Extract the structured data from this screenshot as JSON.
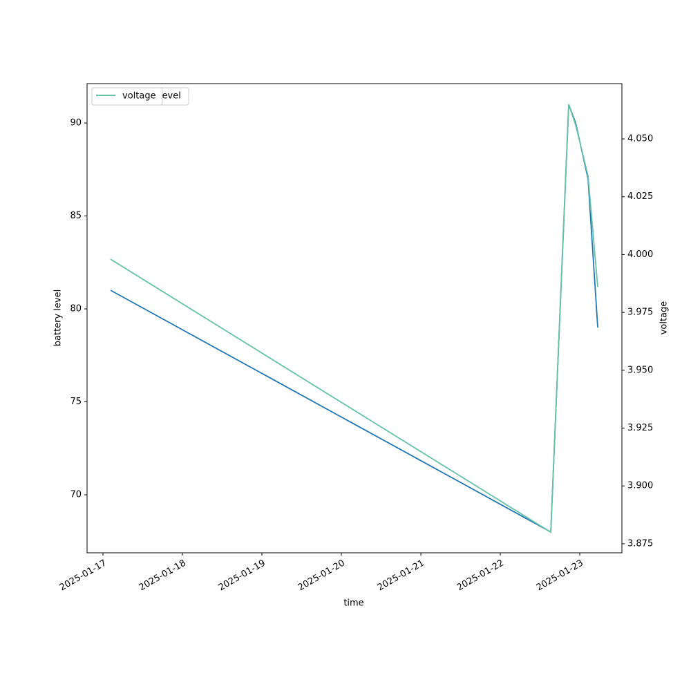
{
  "chart_data": {
    "type": "line",
    "x_label": "time",
    "y_label": "battery level",
    "y2_label": "voltage",
    "x": [
      20105.096,
      20110.635,
      20110.861,
      20110.948,
      20111.104,
      20111.226
    ],
    "xlim": [
      20104.8,
      20111.53
    ],
    "xticks": [
      {
        "value": 20105,
        "label": "2025-01-17"
      },
      {
        "value": 20106,
        "label": "2025-01-18"
      },
      {
        "value": 20107,
        "label": "2025-01-19"
      },
      {
        "value": 20108,
        "label": "2025-01-20"
      },
      {
        "value": 20109,
        "label": "2025-01-21"
      },
      {
        "value": 20110,
        "label": "2025-01-22"
      },
      {
        "value": 20111,
        "label": "2025-01-23"
      }
    ],
    "ylim": [
      66.88,
      92.12
    ],
    "yticks": [
      70,
      75,
      80,
      85,
      90
    ],
    "y2lim": [
      3.8711,
      4.0739
    ],
    "y2ticks": [
      3.875,
      {
        "value": 3.9,
        "label": "3.900"
      },
      3.925,
      {
        "value": 3.95,
        "label": "3.950"
      },
      3.975,
      {
        "value": 4.0,
        "label": "4.000"
      },
      4.025,
      {
        "value": 4.05,
        "label": "4.050"
      }
    ],
    "grid": false,
    "legend": "upper left",
    "series": [
      {
        "name": "battery_level",
        "color": "#1f77b4",
        "values": [
          81,
          68,
          91,
          90,
          87,
          79
        ]
      },
      {
        "name": "voltage",
        "color": "#66c2a5",
        "axis": "y2",
        "values": [
          3.998,
          3.88,
          4.065,
          4.056,
          4.034,
          3.986
        ]
      }
    ]
  }
}
